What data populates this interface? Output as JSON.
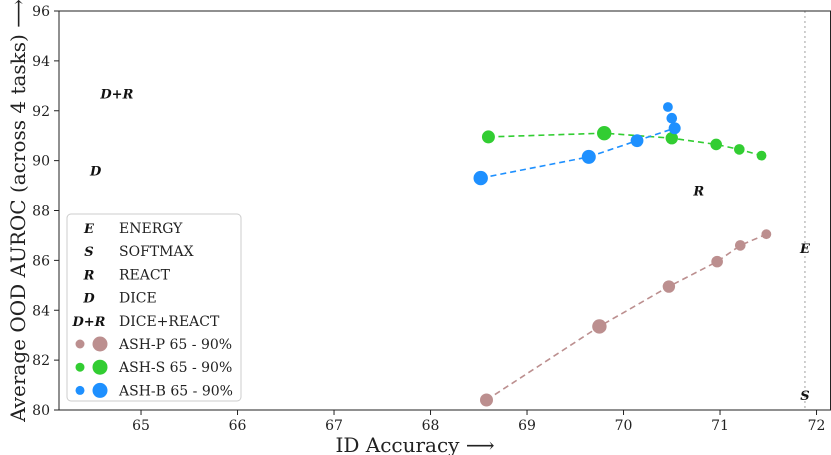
{
  "chart_data": {
    "type": "scatter",
    "title": "",
    "xlabel": "ID Accuracy ⟶",
    "ylabel": "Average OOD AUROC (across 4 tasks) ⟶",
    "xlim": [
      64.15,
      72.15
    ],
    "ylim": [
      80,
      96
    ],
    "xticks": [
      65,
      66,
      67,
      68,
      69,
      70,
      71,
      72
    ],
    "yticks": [
      80,
      82,
      84,
      86,
      88,
      90,
      92,
      94,
      96
    ],
    "reference_line_x": 71.88,
    "grid": false,
    "legend_position": "lower-left",
    "marker_points": [
      {
        "name": "ENERGY",
        "glyph": "E",
        "x": 71.88,
        "y": 86.5
      },
      {
        "name": "SOFTMAX",
        "glyph": "S",
        "x": 71.88,
        "y": 80.6
      },
      {
        "name": "REACT",
        "glyph": "R",
        "x": 70.78,
        "y": 88.8
      },
      {
        "name": "DICE",
        "glyph": "D",
        "x": 64.53,
        "y": 89.6
      },
      {
        "name": "DICE+REACT",
        "glyph": "D+R",
        "x": 64.75,
        "y": 92.7
      }
    ],
    "series": [
      {
        "name": "ASH-P 65 - 90%",
        "color": "#bc8f8f",
        "x": [
          68.58,
          69.75,
          70.47,
          70.97,
          71.21,
          71.48
        ],
        "y": [
          80.4,
          83.35,
          84.95,
          85.95,
          86.6,
          87.05
        ]
      },
      {
        "name": "ASH-S 65 - 90%",
        "color": "#32cd32",
        "x": [
          68.6,
          69.8,
          70.5,
          70.96,
          71.2,
          71.43
        ],
        "y": [
          90.95,
          91.1,
          90.9,
          90.65,
          90.45,
          90.2
        ]
      },
      {
        "name": "ASH-B 65 - 90%",
        "color": "#1e90ff",
        "x": [
          68.52,
          69.64,
          70.14,
          70.53,
          70.5,
          70.46
        ],
        "y": [
          89.3,
          90.15,
          90.8,
          91.3,
          91.7,
          92.15
        ]
      }
    ],
    "legend": [
      {
        "glyph": "E",
        "label": "ENERGY"
      },
      {
        "glyph": "S",
        "label": "SOFTMAX"
      },
      {
        "glyph": "R",
        "label": "REACT"
      },
      {
        "glyph": "D",
        "label": "DICE"
      },
      {
        "glyph": "D+R",
        "label": "DICE+REACT"
      },
      {
        "series": 0,
        "label": "ASH-P 65 - 90%"
      },
      {
        "series": 1,
        "label": "ASH-S 65 - 90%"
      },
      {
        "series": 2,
        "label": "ASH-B 65 - 90%"
      }
    ]
  }
}
